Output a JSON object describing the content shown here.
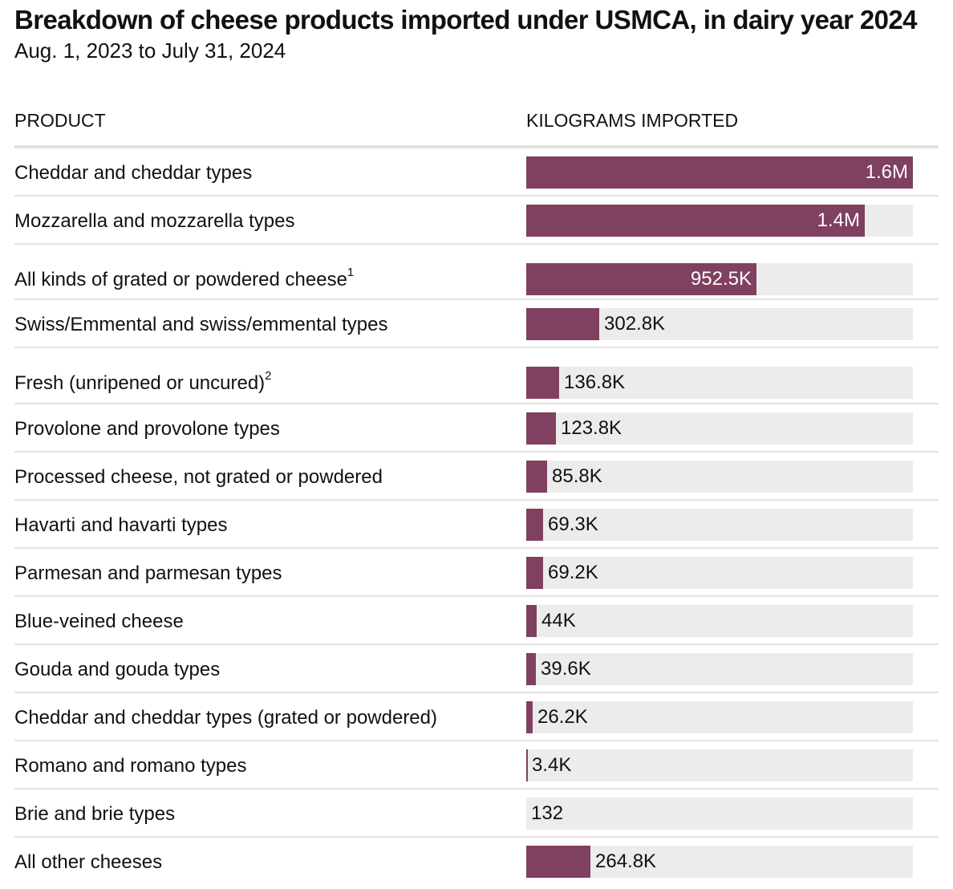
{
  "header": {
    "title": "Breakdown of cheese products imported under USMCA, in dairy year 2024",
    "subtitle": "Aug. 1, 2023 to July 31, 2024"
  },
  "columns": {
    "product": "PRODUCT",
    "value": "KILOGRAMS IMPORTED"
  },
  "colors": {
    "bar": "#80405f",
    "track": "#ececec",
    "rule": "#e2e2e2"
  },
  "chart_data": {
    "type": "bar",
    "orientation": "horizontal",
    "categories": [
      "Cheddar and cheddar types",
      "Mozzarella and mozzarella types",
      "All kinds of grated or powdered cheese",
      "Swiss/Emmental and swiss/emmental types",
      "Fresh (unripened or uncured)",
      "Provolone and provolone types",
      "Processed cheese, not grated or powdered",
      "Havarti and havarti types",
      "Parmesan and parmesan types",
      "Blue-veined cheese",
      "Gouda and gouda types",
      "Cheddar and cheddar types (grated or powdered)",
      "Romano and romano types",
      "Brie and brie types",
      "All other cheeses"
    ],
    "footnote_marks": [
      "",
      "",
      "1",
      "",
      "2",
      "",
      "",
      "",
      "",
      "",
      "",
      "",
      "",
      "",
      ""
    ],
    "values": [
      1600000,
      1400000,
      952500,
      302800,
      136800,
      123800,
      85800,
      69300,
      69200,
      44000,
      39600,
      26200,
      3400,
      132,
      264800
    ],
    "value_labels": [
      "1.6M",
      "1.4M",
      "952.5K",
      "302.8K",
      "136.8K",
      "123.8K",
      "85.8K",
      "69.3K",
      "69.2K",
      "44K",
      "39.6K",
      "26.2K",
      "3.4K",
      "132",
      "264.8K"
    ],
    "xlim": [
      0,
      1600000
    ],
    "legend": "none",
    "grid": false
  }
}
